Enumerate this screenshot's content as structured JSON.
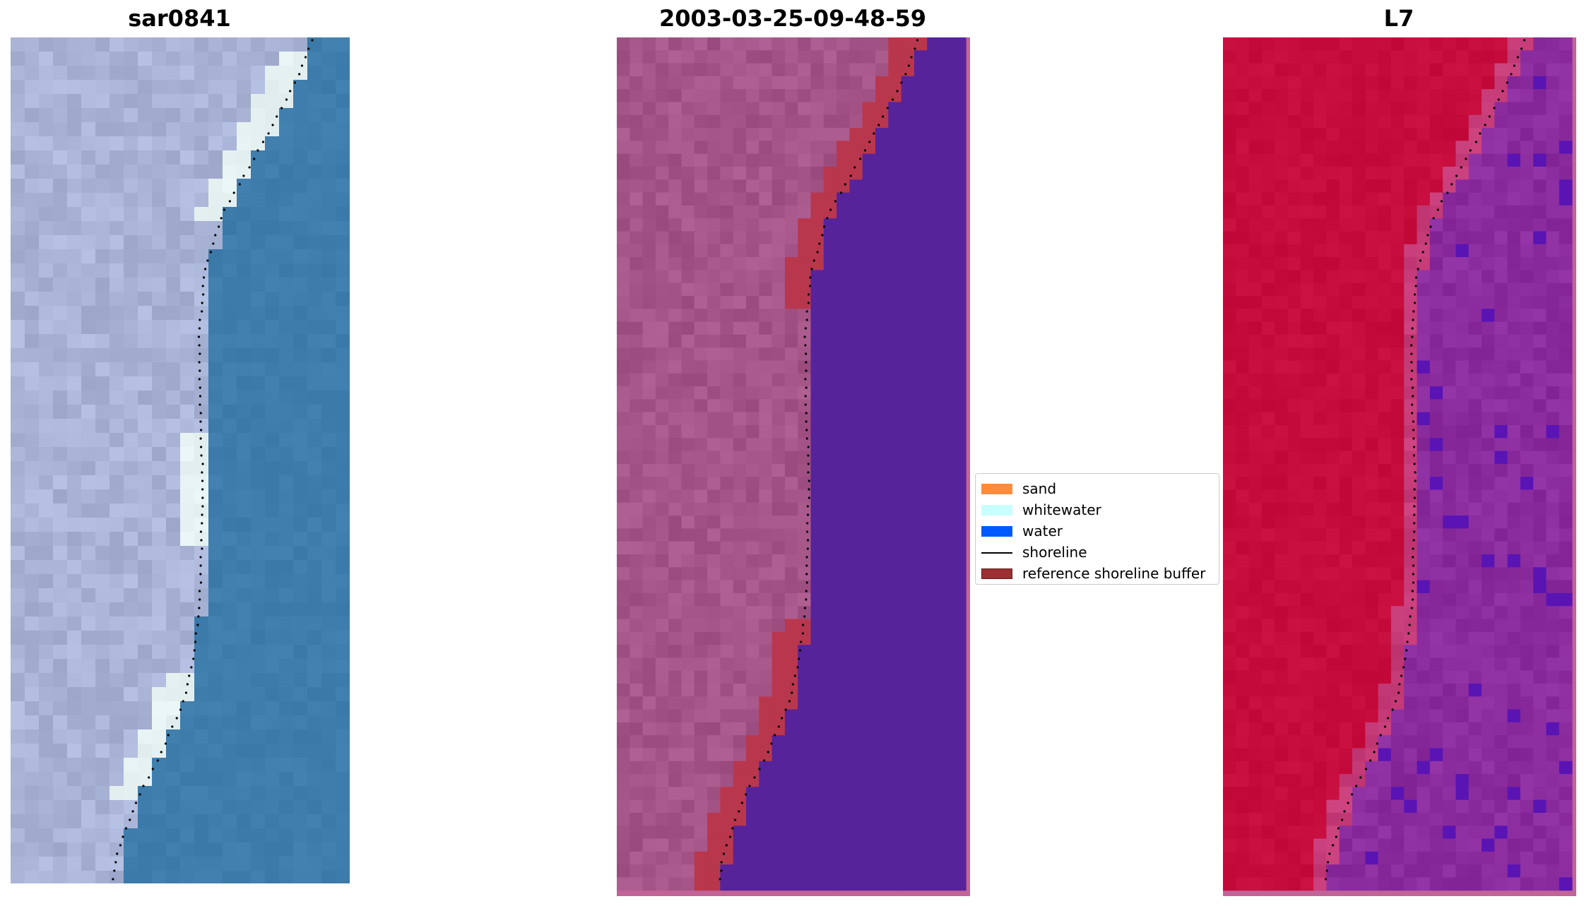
{
  "panels": [
    {
      "title": "sar0841"
    },
    {
      "title": "2003-03-25-09-48-59"
    },
    {
      "title": "L7"
    }
  ],
  "legend": {
    "items": [
      {
        "label": "sand",
        "color": "#ff8c3c",
        "kind": "patch"
      },
      {
        "label": "whitewater",
        "color": "#c8ffff",
        "kind": "patch"
      },
      {
        "label": "water",
        "color": "#0059ff",
        "kind": "patch"
      },
      {
        "label": "shoreline",
        "color": "#000000",
        "kind": "line"
      },
      {
        "label": "reference shoreline buffer",
        "color": "#9b2f33",
        "kind": "patch"
      }
    ]
  },
  "colors": {
    "rgb_land": "#a9b4d0",
    "rgb_water": "#3e7dac",
    "rgb_whitewater": "#e6f2f2",
    "class_land": "#a65588",
    "class_water": "#56239a",
    "class_buffer": "#b9374d",
    "class_border": "#c26498",
    "nir_land": "#c60c3c",
    "nir_water": "#8a2c9e",
    "nir_border": "#c26498"
  }
}
